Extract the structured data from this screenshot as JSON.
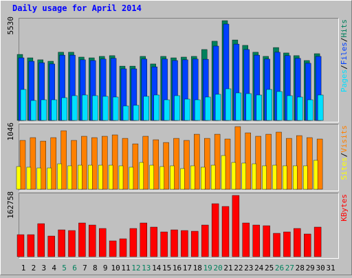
{
  "title": "Daily usage for April 2014",
  "categories": [
    "1",
    "2",
    "3",
    "4",
    "5",
    "6",
    "7",
    "8",
    "9",
    "10",
    "11",
    "12",
    "13",
    "14",
    "15",
    "16",
    "17",
    "18",
    "19",
    "20",
    "21",
    "22",
    "23",
    "24",
    "25",
    "26",
    "27",
    "28",
    "29",
    "30",
    "31"
  ],
  "category_colors": [
    "#000000",
    "#000000",
    "#000000",
    "#000000",
    "#00805c",
    "#00805c",
    "#000000",
    "#000000",
    "#000000",
    "#000000",
    "#000000",
    "#00805c",
    "#00805c",
    "#000000",
    "#000000",
    "#000000",
    "#000000",
    "#000000",
    "#00805c",
    "#00805c",
    "#000000",
    "#000000",
    "#000000",
    "#000000",
    "#000000",
    "#00805c",
    "#00805c",
    "#000000",
    "#000000",
    "#000000",
    "#000000"
  ],
  "legend_separator": "/",
  "chart_data": [
    {
      "type": "bar",
      "ylim": [
        0,
        5530
      ],
      "yticks": [
        5530
      ],
      "series": [
        {
          "name": "Hits",
          "color": "#00805c",
          "values": [
            3660,
            3470,
            3360,
            3280,
            3780,
            3780,
            3510,
            3470,
            3550,
            3590,
            3010,
            3010,
            3550,
            3130,
            3550,
            3470,
            3510,
            3550,
            3930,
            4390,
            5530,
            4460,
            4160,
            3780,
            3550,
            4040,
            3740,
            3590,
            3320,
            3700,
            null
          ]
        },
        {
          "name": "Files",
          "color": "#0040ff",
          "values": [
            3470,
            3280,
            3200,
            3130,
            3620,
            3620,
            3360,
            3320,
            3400,
            3440,
            2860,
            2860,
            3400,
            2970,
            3400,
            3320,
            3360,
            3400,
            3390,
            4120,
            5340,
            4230,
            3930,
            3620,
            3400,
            3780,
            3590,
            3440,
            3170,
            3550,
            null
          ]
        },
        {
          "name": "Pages",
          "color": "#00e0ff",
          "values": [
            1716,
            1106,
            1144,
            1144,
            1259,
            1373,
            1411,
            1373,
            1335,
            1297,
            801,
            839,
            1335,
            1411,
            1144,
            1373,
            1182,
            1144,
            1297,
            1449,
            1754,
            1526,
            1487,
            1411,
            1716,
            1602,
            1373,
            1297,
            1144,
            1411,
            null
          ]
        }
      ]
    },
    {
      "type": "bar",
      "ylim": [
        0,
        1046
      ],
      "yticks": [
        1046
      ],
      "series": [
        {
          "name": "Visits",
          "color": "#ff8000",
          "values": [
            816,
            862,
            804,
            862,
            977,
            816,
            885,
            862,
            885,
            908,
            850,
            758,
            885,
            827,
            781,
            850,
            816,
            919,
            850,
            919,
            839,
            1046,
            942,
            885,
            919,
            954,
            850,
            896,
            862,
            839,
            null
          ]
        },
        {
          "name": "Sites",
          "color": "#ffff00",
          "values": [
            379,
            368,
            356,
            356,
            425,
            391,
            402,
            402,
            402,
            402,
            391,
            368,
            448,
            402,
            379,
            391,
            345,
            391,
            368,
            402,
            563,
            448,
            437,
            425,
            391,
            402,
            391,
            391,
            391,
            483,
            null
          ]
        }
      ]
    },
    {
      "type": "bar",
      "ylim": [
        0,
        162758
      ],
      "yticks": [
        162758
      ],
      "series": [
        {
          "name": "KBytes",
          "color": "#ff0000",
          "values": [
            58520,
            58520,
            87780,
            54860,
            71320,
            69490,
            89610,
            84120,
            74980,
            42060,
            47550,
            74980,
            89610,
            78630,
            65830,
            71320,
            69490,
            67660,
            84120,
            140810,
            133500,
            162758,
            89610,
            84120,
            82290,
            62180,
            65830,
            74980,
            60350,
            78630,
            null
          ]
        }
      ]
    }
  ]
}
